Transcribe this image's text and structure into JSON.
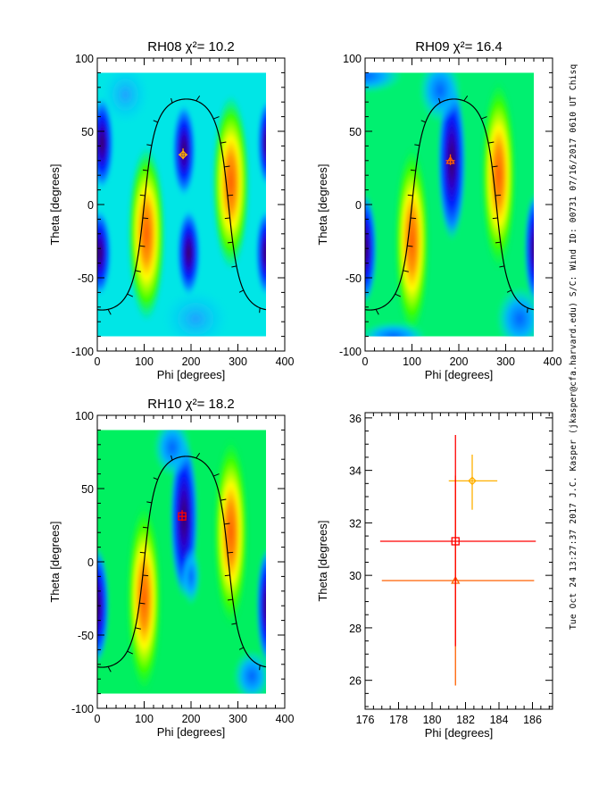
{
  "footer": "Tue Oct 24 13:27:37 2017   J.C. Kasper (jkasper@cfa.harvard.edu)   S/C: Wind ID: 00731 07/16/2017   0610 UT Chisq",
  "chart_data": [
    {
      "type": "heatmap",
      "title": "RH08 χ²= 10.2",
      "xlabel": "Phi [degrees]",
      "ylabel": "Theta [degrees]",
      "xlim": [
        0,
        400
      ],
      "ylim": [
        -100,
        100
      ],
      "xticks": [
        "0",
        "100",
        "200",
        "300",
        "400"
      ],
      "yticks": [
        "-100",
        "-50",
        "0",
        "50",
        "100"
      ],
      "background": "#00e6e6",
      "marker": {
        "symbol": "diamond",
        "phi": 183,
        "theta": 34,
        "color": "#ffb000"
      },
      "blobs": [
        {
          "kind": "high",
          "phi": 105,
          "theta": -20,
          "rphi": 40,
          "rtheta": 60
        },
        {
          "kind": "high",
          "phi": 285,
          "theta": 15,
          "rphi": 40,
          "rtheta": 60
        },
        {
          "kind": "low",
          "phi": 185,
          "theta": 37,
          "rphi": 25,
          "rtheta": 32
        },
        {
          "kind": "low",
          "phi": 195,
          "theta": -33,
          "rphi": 25,
          "rtheta": 30
        },
        {
          "kind": "low",
          "phi": 10,
          "theta": 42,
          "rphi": 25,
          "rtheta": 32
        },
        {
          "kind": "low",
          "phi": 5,
          "theta": -33,
          "rphi": 25,
          "rtheta": 30
        },
        {
          "kind": "low",
          "phi": 362,
          "theta": 42,
          "rphi": 20,
          "rtheta": 30
        },
        {
          "kind": "low",
          "phi": 360,
          "theta": -33,
          "rphi": 22,
          "rtheta": 30
        },
        {
          "kind": "mid",
          "phi": 210,
          "theta": -78,
          "rphi": 70,
          "rtheta": 20
        },
        {
          "kind": "mid",
          "phi": 60,
          "theta": 75,
          "rphi": 50,
          "rtheta": 20
        }
      ]
    },
    {
      "type": "heatmap",
      "title": "RH09 χ²= 16.4",
      "xlabel": "Phi [degrees]",
      "ylabel": "Theta [degrees]",
      "xlim": [
        0,
        400
      ],
      "ylim": [
        -100,
        100
      ],
      "xticks": [
        "0",
        "100",
        "200",
        "300",
        "400"
      ],
      "yticks": [
        "-100",
        "-50",
        "0",
        "50",
        "100"
      ],
      "background": "#00f070",
      "marker": {
        "symbol": "triangle",
        "phi": 182,
        "theta": 30,
        "color": "#ff6000"
      },
      "blobs": [
        {
          "kind": "high",
          "phi": 100,
          "theta": -25,
          "rphi": 38,
          "rtheta": 65
        },
        {
          "kind": "high",
          "phi": 285,
          "theta": 20,
          "rphi": 38,
          "rtheta": 65
        },
        {
          "kind": "low",
          "phi": 185,
          "theta": 30,
          "rphi": 30,
          "rtheta": 55
        },
        {
          "kind": "low",
          "phi": 0,
          "theta": -30,
          "rphi": 25,
          "rtheta": 38
        },
        {
          "kind": "low",
          "phi": 362,
          "theta": -30,
          "rphi": 22,
          "rtheta": 38
        },
        {
          "kind": "cool",
          "phi": 160,
          "theta": 78,
          "rphi": 45,
          "rtheta": 22
        },
        {
          "kind": "cool",
          "phi": 330,
          "theta": -78,
          "rphi": 50,
          "rtheta": 22
        },
        {
          "kind": "cool",
          "phi": 0,
          "theta": 88,
          "rphi": 80,
          "rtheta": 12
        },
        {
          "kind": "cool",
          "phi": 60,
          "theta": -90,
          "rphi": 70,
          "rtheta": 10
        }
      ]
    },
    {
      "type": "heatmap",
      "title": "RH10 χ²= 18.2",
      "xlabel": "Phi [degrees]",
      "ylabel": "Theta [degrees]",
      "xlim": [
        0,
        400
      ],
      "ylim": [
        -100,
        100
      ],
      "xticks": [
        "0",
        "100",
        "200",
        "300",
        "400"
      ],
      "yticks": [
        "-100",
        "-50",
        "0",
        "50",
        "100"
      ],
      "background": "#00f060",
      "marker": {
        "symbol": "square",
        "phi": 181,
        "theta": 31,
        "color": "#ff0000"
      },
      "blobs": [
        {
          "kind": "high",
          "phi": 100,
          "theta": -25,
          "rphi": 38,
          "rtheta": 65
        },
        {
          "kind": "high",
          "phi": 285,
          "theta": 20,
          "rphi": 38,
          "rtheta": 65
        },
        {
          "kind": "low",
          "phi": 185,
          "theta": 30,
          "rphi": 30,
          "rtheta": 55
        },
        {
          "kind": "low",
          "phi": 0,
          "theta": -30,
          "rphi": 25,
          "rtheta": 40
        },
        {
          "kind": "low",
          "phi": 362,
          "theta": -30,
          "rphi": 22,
          "rtheta": 40
        },
        {
          "kind": "cool",
          "phi": 160,
          "theta": 78,
          "rphi": 40,
          "rtheta": 20
        },
        {
          "kind": "cool",
          "phi": 330,
          "theta": -78,
          "rphi": 40,
          "rtheta": 18
        },
        {
          "kind": "cool",
          "phi": 200,
          "theta": -10,
          "rphi": 20,
          "rtheta": 20
        }
      ]
    },
    {
      "type": "scatter",
      "title": "",
      "xlabel": "Phi [degrees]",
      "ylabel": "Theta [degrees]",
      "xlim": [
        176,
        187.2
      ],
      "ylim": [
        24.9,
        36.2
      ],
      "xticks": [
        "176",
        "178",
        "180",
        "182",
        "184",
        "186"
      ],
      "yticks": [
        "26",
        "28",
        "30",
        "32",
        "34",
        "36"
      ],
      "points": [
        {
          "symbol": "diamond",
          "color": "#ffb000",
          "phi": 182.4,
          "theta": 33.6,
          "phi_err": [
            181.0,
            183.9
          ],
          "theta_err": [
            32.5,
            34.6
          ]
        },
        {
          "symbol": "triangle",
          "color": "#ff6000",
          "phi": 181.4,
          "theta": 29.8,
          "phi_err": [
            177.0,
            186.1
          ],
          "theta_err": [
            25.8,
            33.8
          ]
        },
        {
          "symbol": "square",
          "color": "#ff0000",
          "phi": 181.4,
          "theta": 31.3,
          "phi_err": [
            176.9,
            186.2
          ],
          "theta_err": [
            27.3,
            35.35
          ]
        }
      ]
    }
  ]
}
